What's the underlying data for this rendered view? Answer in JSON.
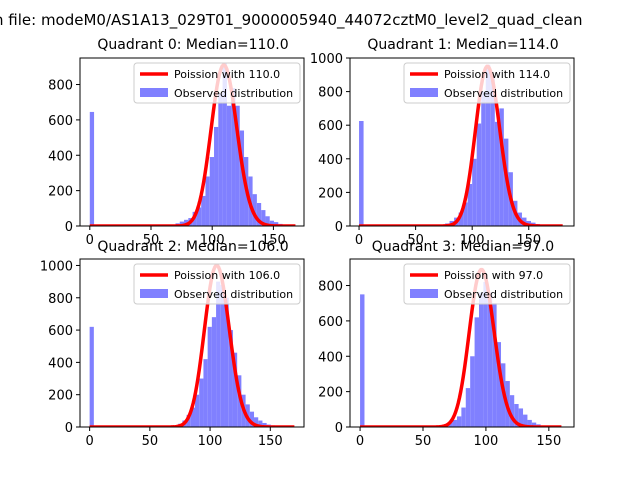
{
  "figure": {
    "suptitle": "n file: modeM0/AS1A13_029T01_9000005940_44072cztM0_level2_quad_clean"
  },
  "chart_data": [
    {
      "type": "histogram",
      "title": "Quadrant 0: Median=110.0",
      "xlabel": "",
      "ylabel": "",
      "xlim": [
        -8,
        175
      ],
      "ylim": [
        0,
        950
      ],
      "xticks": [
        0,
        50,
        100,
        150
      ],
      "yticks": [
        0,
        200,
        400,
        600,
        800
      ],
      "legend_position": "upper right",
      "series": [
        {
          "name": "Poission with 110.0",
          "kind": "poisson",
          "color": "#ff0000",
          "lambda": 110.0,
          "scale": 910,
          "x_range": [
            0,
            168
          ]
        },
        {
          "name": "Observed distribution",
          "kind": "histogram",
          "color": "#8080ff",
          "bin_width": 3.5,
          "bins": [
            [
              0,
              645
            ],
            [
              70,
              15
            ],
            [
              73.5,
              25
            ],
            [
              77,
              35
            ],
            [
              80.5,
              45
            ],
            [
              84,
              80
            ],
            [
              87.5,
              105
            ],
            [
              91,
              170
            ],
            [
              94.5,
              280
            ],
            [
              98,
              390
            ],
            [
              101.5,
              560
            ],
            [
              105,
              750
            ],
            [
              108.5,
              920
            ],
            [
              112,
              680
            ],
            [
              115.5,
              780
            ],
            [
              119,
              680
            ],
            [
              122.5,
              540
            ],
            [
              126,
              390
            ],
            [
              129.5,
              280
            ],
            [
              133,
              180
            ],
            [
              136.5,
              130
            ],
            [
              140,
              90
            ],
            [
              143.5,
              55
            ],
            [
              147,
              30
            ],
            [
              150.5,
              22
            ],
            [
              154,
              12
            ],
            [
              157.5,
              6
            ],
            [
              161,
              3
            ]
          ]
        }
      ]
    },
    {
      "type": "histogram",
      "title": "Quadrant 1: Median=114.0",
      "xlabel": "",
      "ylabel": "",
      "xlim": [
        -8,
        190
      ],
      "ylim": [
        0,
        1000
      ],
      "xticks": [
        0,
        50,
        100,
        150
      ],
      "yticks": [
        0,
        200,
        400,
        600,
        800,
        1000
      ],
      "legend_position": "upper right",
      "series": [
        {
          "name": "Poission with 114.0",
          "kind": "poisson",
          "color": "#ff0000",
          "lambda": 114.0,
          "scale": 950,
          "x_range": [
            0,
            180
          ]
        },
        {
          "name": "Observed distribution",
          "kind": "histogram",
          "color": "#8080ff",
          "bin_width": 4,
          "bins": [
            [
              0,
              625
            ],
            [
              76,
              15
            ],
            [
              80,
              30
            ],
            [
              84,
              50
            ],
            [
              88,
              80
            ],
            [
              92,
              140
            ],
            [
              96,
              250
            ],
            [
              100,
              400
            ],
            [
              104,
              610
            ],
            [
              108,
              800
            ],
            [
              112,
              960
            ],
            [
              116,
              880
            ],
            [
              120,
              620
            ],
            [
              124,
              700
            ],
            [
              128,
              520
            ],
            [
              132,
              320
            ],
            [
              136,
              150
            ],
            [
              140,
              80
            ],
            [
              144,
              50
            ],
            [
              148,
              30
            ],
            [
              152,
              20
            ],
            [
              156,
              12
            ],
            [
              160,
              6
            ],
            [
              164,
              3
            ]
          ]
        }
      ]
    },
    {
      "type": "histogram",
      "title": "Quadrant 2: Median=106.0",
      "xlabel": "",
      "ylabel": "",
      "xlim": [
        -8,
        178
      ],
      "ylim": [
        0,
        1040
      ],
      "xticks": [
        0,
        50,
        100,
        150
      ],
      "yticks": [
        0,
        200,
        400,
        600,
        800,
        1000
      ],
      "legend_position": "upper right",
      "series": [
        {
          "name": "Poission with 106.0",
          "kind": "poisson",
          "color": "#ff0000",
          "lambda": 106.0,
          "scale": 1000,
          "x_range": [
            0,
            170
          ]
        },
        {
          "name": "Observed distribution",
          "kind": "histogram",
          "color": "#8080ff",
          "bin_width": 3.5,
          "bins": [
            [
              0,
              620
            ],
            [
              70,
              10
            ],
            [
              73.5,
              20
            ],
            [
              77,
              40
            ],
            [
              80.5,
              75
            ],
            [
              84,
              120
            ],
            [
              87.5,
              200
            ],
            [
              91,
              300
            ],
            [
              94.5,
              420
            ],
            [
              98,
              620
            ],
            [
              101.5,
              680
            ],
            [
              105,
              900
            ],
            [
              108.5,
              880
            ],
            [
              112,
              800
            ],
            [
              115.5,
              600
            ],
            [
              119,
              460
            ],
            [
              122.5,
              320
            ],
            [
              126,
              200
            ],
            [
              129.5,
              140
            ],
            [
              133,
              95
            ],
            [
              136.5,
              60
            ],
            [
              140,
              40
            ],
            [
              143.5,
              25
            ],
            [
              147,
              15
            ],
            [
              150.5,
              10
            ],
            [
              154,
              6
            ],
            [
              157.5,
              3
            ]
          ]
        }
      ]
    },
    {
      "type": "histogram",
      "title": "Quadrant 3: Median=97.0",
      "xlabel": "",
      "ylabel": "",
      "xlim": [
        -8,
        170
      ],
      "ylim": [
        0,
        950
      ],
      "xticks": [
        0,
        50,
        100,
        150
      ],
      "yticks": [
        0,
        200,
        400,
        600,
        800
      ],
      "legend_position": "upper right",
      "series": [
        {
          "name": "Poission with 97.0",
          "kind": "poisson",
          "color": "#ff0000",
          "lambda": 97.0,
          "scale": 890,
          "x_range": [
            0,
            160
          ]
        },
        {
          "name": "Observed distribution",
          "kind": "histogram",
          "color": "#8080ff",
          "bin_width": 3.5,
          "bins": [
            [
              0,
              750
            ],
            [
              42,
              6
            ],
            [
              63,
              10
            ],
            [
              66.5,
              15
            ],
            [
              70,
              25
            ],
            [
              73.5,
              40
            ],
            [
              77,
              60
            ],
            [
              80.5,
              110
            ],
            [
              84,
              220
            ],
            [
              87.5,
              400
            ],
            [
              91,
              620
            ],
            [
              94.5,
              760
            ],
            [
              98,
              820
            ],
            [
              101.5,
              760
            ],
            [
              105,
              700
            ],
            [
              108.5,
              480
            ],
            [
              112,
              360
            ],
            [
              115.5,
              260
            ],
            [
              119,
              180
            ],
            [
              122.5,
              130
            ],
            [
              126,
              105
            ],
            [
              129.5,
              70
            ],
            [
              133,
              40
            ],
            [
              136.5,
              25
            ],
            [
              140,
              15
            ],
            [
              143.5,
              8
            ],
            [
              147,
              4
            ]
          ]
        }
      ]
    }
  ]
}
